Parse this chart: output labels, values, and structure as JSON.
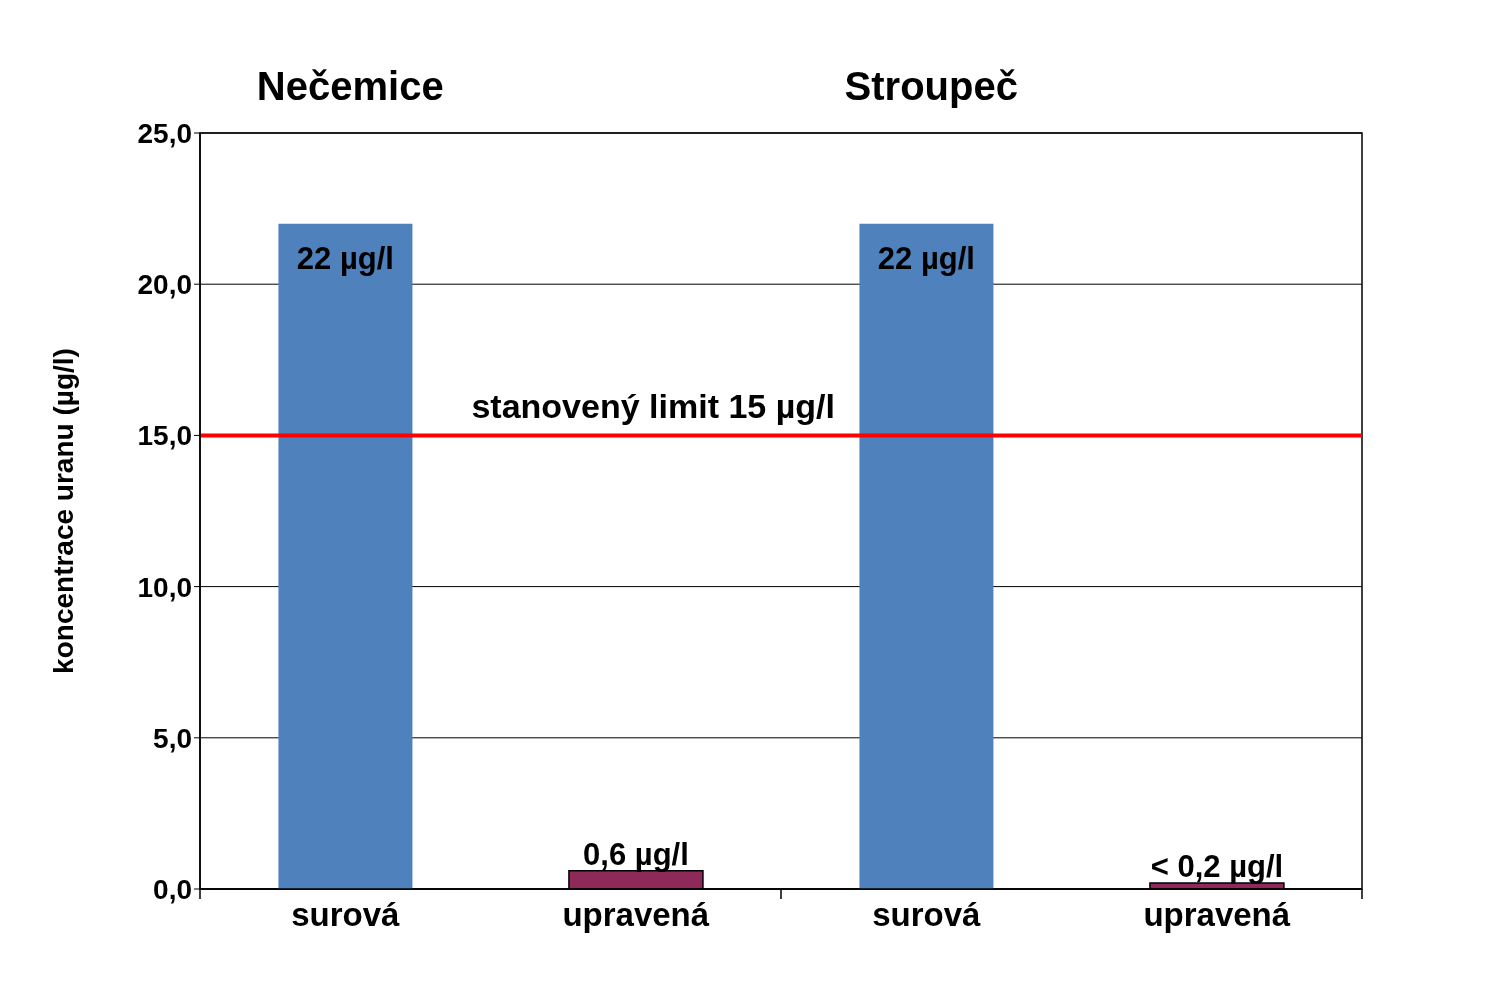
{
  "chart_data": {
    "type": "bar",
    "categories": [
      "surová",
      "upravená",
      "surová",
      "upravená"
    ],
    "values": [
      22,
      0.6,
      22,
      0.2
    ],
    "colors": [
      "#4f81bd",
      "#8e2a5a",
      "#4f81bd",
      "#8e2a5a"
    ],
    "value_labels": [
      "22 µg/l",
      "0,6 µg/l",
      "22 µg/l",
      "< 0,2 µg/l"
    ],
    "ylabel": "koncentrace uranu (µg/l)",
    "ylim": [
      0,
      25
    ],
    "yticks": [
      {
        "value": 0,
        "label": "0,0"
      },
      {
        "value": 5,
        "label": "5,0"
      },
      {
        "value": 10,
        "label": "10,0"
      },
      {
        "value": 15,
        "label": "15,0"
      },
      {
        "value": 20,
        "label": "20,0"
      },
      {
        "value": 25,
        "label": "25,0"
      }
    ],
    "grid": "y",
    "ref_lines": [
      {
        "axis": "y",
        "value": 15,
        "label": "stanovený limit 15 µg/l",
        "color": "#ff0000"
      }
    ],
    "annotations": [
      "Nečemice",
      "Stroupeč"
    ]
  }
}
